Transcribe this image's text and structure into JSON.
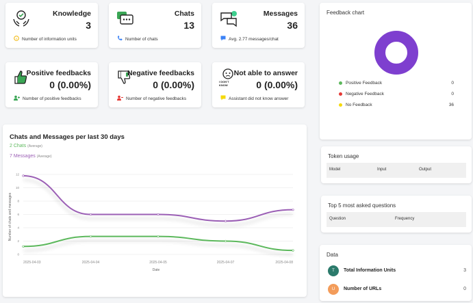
{
  "stats": {
    "knowledge": {
      "title": "Knowledge",
      "value": "3",
      "sub": "Number of information units"
    },
    "chats": {
      "title": "Chats",
      "value": "13",
      "sub": "Number of chats"
    },
    "messages": {
      "title": "Messages",
      "value": "36",
      "sub": "Avg. 2.77 messages/chat"
    },
    "positive": {
      "title": "Positive feedbacks",
      "value": "0 (0.00%)",
      "sub": "Number of positive feedbacks"
    },
    "negative": {
      "title": "Negative feedbacks",
      "value": "0 (0.00%)",
      "sub": "Number of negative feedbacks"
    },
    "notable": {
      "title": "Not able to answer",
      "value": "0 (0.00%)",
      "sub": "Assistant did not know answer",
      "icon_text": "I DON'T KNOW"
    }
  },
  "colors": {
    "green": "#5cb85c",
    "purple": "#9b5fb5",
    "red": "#e53935",
    "yellow": "#f5d90a",
    "donut": "#7e3fcf",
    "orange": "#f39c5a",
    "teal": "#2b7a6b"
  },
  "chart": {
    "title": "Chats and Messages per last 30 days",
    "chats_avg": "2 Chats",
    "messages_avg": "7 Messages",
    "avg_label": "(Average)"
  },
  "chart_data": {
    "type": "line",
    "x": [
      "2025-04-03",
      "2025-04-04",
      "2025-04-05",
      "2025-04-07",
      "2025-04-08"
    ],
    "xlabel": "Date",
    "ylabel": "Number of chats and messages",
    "ylim": [
      0,
      12
    ],
    "yticks": [
      "0",
      "2",
      "4",
      "6",
      "8",
      "10",
      "12"
    ],
    "grid": true,
    "series": [
      {
        "color": "#9b5fb5",
        "values": [
          11.8,
          6.0,
          6.0,
          5.0,
          6.7
        ]
      },
      {
        "color": "#5cb85c",
        "values": [
          1.2,
          2.7,
          2.7,
          2.0,
          0.6
        ]
      }
    ]
  },
  "feedback": {
    "title": "Feedback chart",
    "items": [
      {
        "label": "Positive Feedback",
        "value": "0",
        "color": "#5cb85c"
      },
      {
        "label": "Negative Feedback",
        "value": "0",
        "color": "#e53935"
      },
      {
        "label": "No Feedback",
        "value": "36",
        "color": "#f5d90a"
      }
    ],
    "donut_color": "#7e3fcf"
  },
  "token_usage": {
    "title": "Token usage",
    "headers": [
      "Model",
      "Input",
      "Output"
    ]
  },
  "top_questions": {
    "title": "Top 5 most asked questions",
    "headers": [
      "Question",
      "Frequency"
    ]
  },
  "data_panel": {
    "title": "Data",
    "items": [
      {
        "badge": "T",
        "label": "Total Information Units",
        "value": "3",
        "color": "#2b7a6b"
      },
      {
        "badge": "U",
        "label": "Number of URLs",
        "value": "0",
        "color": "#f39c5a"
      }
    ]
  }
}
